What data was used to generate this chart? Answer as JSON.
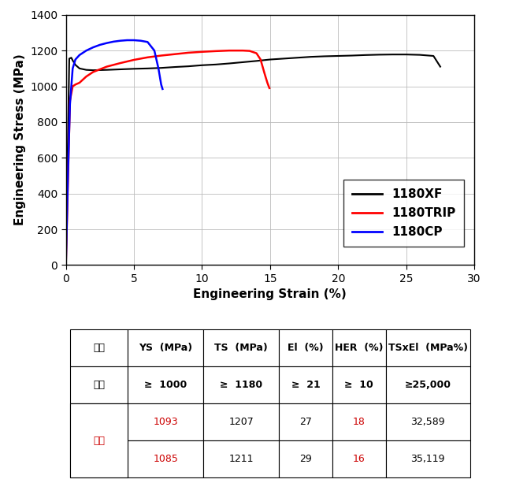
{
  "xlabel": "Engineering Strain (%)",
  "ylabel": "Engineering Stress (MPa)",
  "xlim": [
    0,
    30
  ],
  "ylim": [
    0,
    1400
  ],
  "xticks": [
    0,
    5,
    10,
    15,
    20,
    25,
    30
  ],
  "yticks": [
    0,
    200,
    400,
    600,
    800,
    1000,
    1200,
    1400
  ],
  "legend_labels": [
    "1180XF",
    "1180TRIP",
    "1180CP"
  ],
  "legend_colors": [
    "#000000",
    "#ff0000",
    "#0000ff"
  ],
  "table_headers": [
    "구분",
    "YS  (MPa)",
    "TS  (MPa)",
    "El  (%)",
    "HER  (%)",
    "TSxEl  (MPa%)"
  ],
  "background_color": "#ffffff",
  "curve_XF": {
    "x": [
      0,
      0.25,
      0.4,
      0.5,
      0.7,
      1.0,
      1.5,
      2.0,
      3.0,
      4.0,
      5.0,
      6.0,
      7.0,
      8.0,
      9.0,
      10.0,
      11.0,
      12.0,
      13.0,
      14.0,
      15.0,
      16.0,
      17.0,
      18.0,
      19.0,
      20.0,
      21.0,
      22.0,
      23.0,
      24.0,
      25.0,
      26.0,
      27.0,
      27.5
    ],
    "y": [
      0,
      1155,
      1160,
      1145,
      1120,
      1100,
      1092,
      1090,
      1092,
      1095,
      1098,
      1100,
      1103,
      1108,
      1112,
      1118,
      1122,
      1128,
      1135,
      1142,
      1150,
      1155,
      1160,
      1165,
      1168,
      1170,
      1172,
      1175,
      1177,
      1178,
      1178,
      1176,
      1170,
      1110
    ],
    "color": "#000000",
    "lw": 1.5
  },
  "curve_TRIP": {
    "x": [
      0,
      0.3,
      0.5,
      0.7,
      1.0,
      1.5,
      2.0,
      3.0,
      4.0,
      5.0,
      6.0,
      7.0,
      8.0,
      9.0,
      10.0,
      11.0,
      12.0,
      13.0,
      13.5,
      14.0,
      14.3,
      14.6,
      14.8,
      14.95
    ],
    "y": [
      0,
      920,
      1000,
      1010,
      1020,
      1055,
      1080,
      1110,
      1130,
      1148,
      1162,
      1172,
      1180,
      1188,
      1193,
      1197,
      1200,
      1200,
      1198,
      1185,
      1150,
      1070,
      1020,
      990
    ],
    "color": "#ff0000",
    "lw": 1.8
  },
  "curve_CP": {
    "x": [
      0,
      0.15,
      0.3,
      0.5,
      0.7,
      1.0,
      1.5,
      2.0,
      2.5,
      3.0,
      3.5,
      4.0,
      4.5,
      5.0,
      5.5,
      6.0,
      6.5,
      6.8,
      7.0,
      7.1
    ],
    "y": [
      0,
      500,
      900,
      1100,
      1150,
      1175,
      1200,
      1218,
      1232,
      1242,
      1250,
      1255,
      1258,
      1258,
      1255,
      1248,
      1200,
      1100,
      1010,
      985
    ],
    "color": "#0000ff",
    "lw": 1.8
  }
}
